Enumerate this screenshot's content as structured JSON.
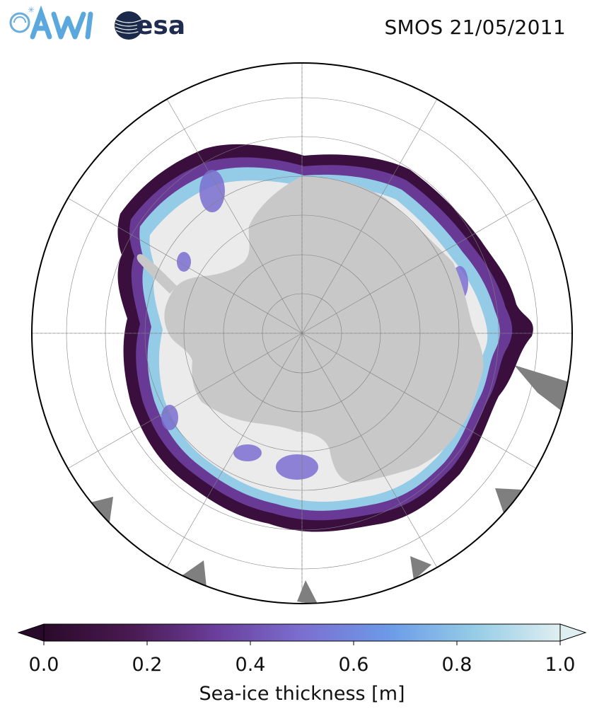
{
  "header": {
    "title": "SMOS 21/05/2011",
    "logos": {
      "awi_text": "AWI",
      "esa_text": "esa"
    }
  },
  "map": {
    "projection": "south-polar-stereographic",
    "graticule": "on",
    "colors": {
      "land": "#c8c8c8",
      "missing": "#7f7f7f",
      "ocean": "#ffffff",
      "open_water_ice": "#ebebeb"
    }
  },
  "colorbar": {
    "label": "Sea-ice thickness [m]",
    "ticks": [
      "0.0",
      "0.2",
      "0.4",
      "0.6",
      "0.8",
      "1.0"
    ],
    "min": 0.0,
    "max": 1.0,
    "extend": "both",
    "colormap_stops": [
      "#2a0a2a",
      "#4a1a52",
      "#6a3d9a",
      "#7b6fd0",
      "#6c9be8",
      "#94cbe6",
      "#dfeff1"
    ]
  }
}
